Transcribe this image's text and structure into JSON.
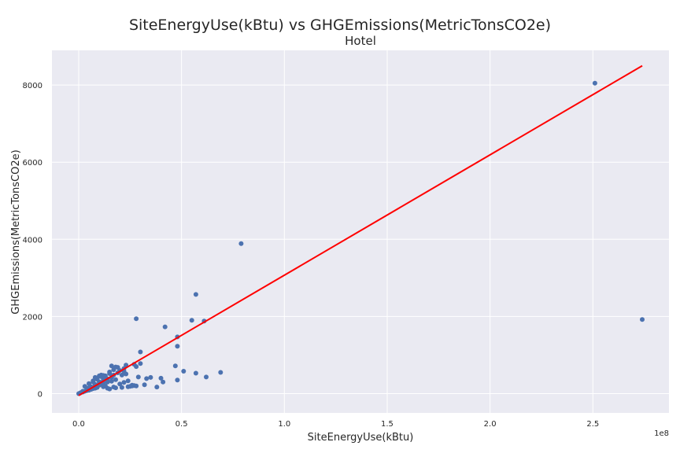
{
  "chart_data": {
    "type": "scatter",
    "title": "SiteEnergyUse(kBtu) vs GHGEmissions(MetricTonsCO2e)",
    "subtitle": "Hotel",
    "xlabel": "SiteEnergyUse(kBtu)",
    "ylabel": "GHGEmissions(MetricTonsCO2e)",
    "x_offset_label": "1e8",
    "xlim": [
      -0.13,
      2.87
    ],
    "ylim": [
      -500,
      8900
    ],
    "xticks": [
      0.0,
      0.5,
      1.0,
      1.5,
      2.0,
      2.5
    ],
    "xtick_labels": [
      "0.0",
      "0.5",
      "1.0",
      "1.5",
      "2.0",
      "2.5"
    ],
    "yticks": [
      0,
      2000,
      4000,
      6000,
      8000
    ],
    "ytick_labels": [
      "0",
      "2000",
      "4000",
      "6000",
      "8000"
    ],
    "grid": true,
    "background_color": "#eaeaf2",
    "point_color": "#4c72b0",
    "fit_line_color": "#ff0000",
    "fit_line": {
      "x": [
        0.0,
        2.74
      ],
      "y": [
        -50,
        8500
      ]
    },
    "x": [
      2.51,
      2.74,
      0.79,
      0.57,
      0.28,
      0.55,
      0.62,
      0.42,
      0.48,
      0.48,
      0.3,
      0.69,
      0.57,
      0.51,
      0.47,
      0.61,
      0.35,
      0.32,
      0.4,
      0.41,
      0.38,
      0.48,
      0.3,
      0.27,
      0.28,
      0.23,
      0.22,
      0.19,
      0.18,
      0.16,
      0.2,
      0.22,
      0.25,
      0.27,
      0.29,
      0.33,
      0.21,
      0.24,
      0.26,
      0.18,
      0.15,
      0.17,
      0.14,
      0.13,
      0.12,
      0.11,
      0.1,
      0.09,
      0.08,
      0.07,
      0.06,
      0.05,
      0.04,
      0.03,
      0.02,
      0.01,
      0.005,
      0.0,
      0.02,
      0.04,
      0.06,
      0.08,
      0.1,
      0.12,
      0.14,
      0.16,
      0.13,
      0.11,
      0.09,
      0.07,
      0.05,
      0.03,
      0.15,
      0.17,
      0.19,
      0.21,
      0.23,
      0.12,
      0.14,
      0.1,
      0.08,
      0.06,
      0.16,
      0.18,
      0.11,
      0.13,
      0.09,
      0.07,
      0.2,
      0.22,
      0.24,
      0.26,
      0.28,
      0.12,
      0.1,
      0.08,
      0.15,
      0.17,
      0.05,
      0.04
    ],
    "y": [
      8050,
      1920,
      3890,
      2570,
      1940,
      1900,
      430,
      1730,
      1470,
      1230,
      1080,
      550,
      530,
      580,
      720,
      1880,
      420,
      230,
      400,
      300,
      170,
      350,
      780,
      760,
      700,
      740,
      650,
      680,
      690,
      720,
      600,
      580,
      190,
      210,
      430,
      390,
      160,
      180,
      200,
      150,
      120,
      170,
      140,
      200,
      180,
      250,
      220,
      160,
      140,
      130,
      110,
      90,
      80,
      60,
      40,
      25,
      10,
      0,
      60,
      120,
      180,
      240,
      300,
      350,
      380,
      420,
      460,
      480,
      400,
      330,
      260,
      190,
      560,
      620,
      540,
      480,
      510,
      280,
      300,
      240,
      210,
      170,
      320,
      360,
      440,
      390,
      370,
      300,
      250,
      290,
      330,
      220,
      200,
      470,
      460,
      420,
      520,
      480,
      150,
      130
    ]
  }
}
